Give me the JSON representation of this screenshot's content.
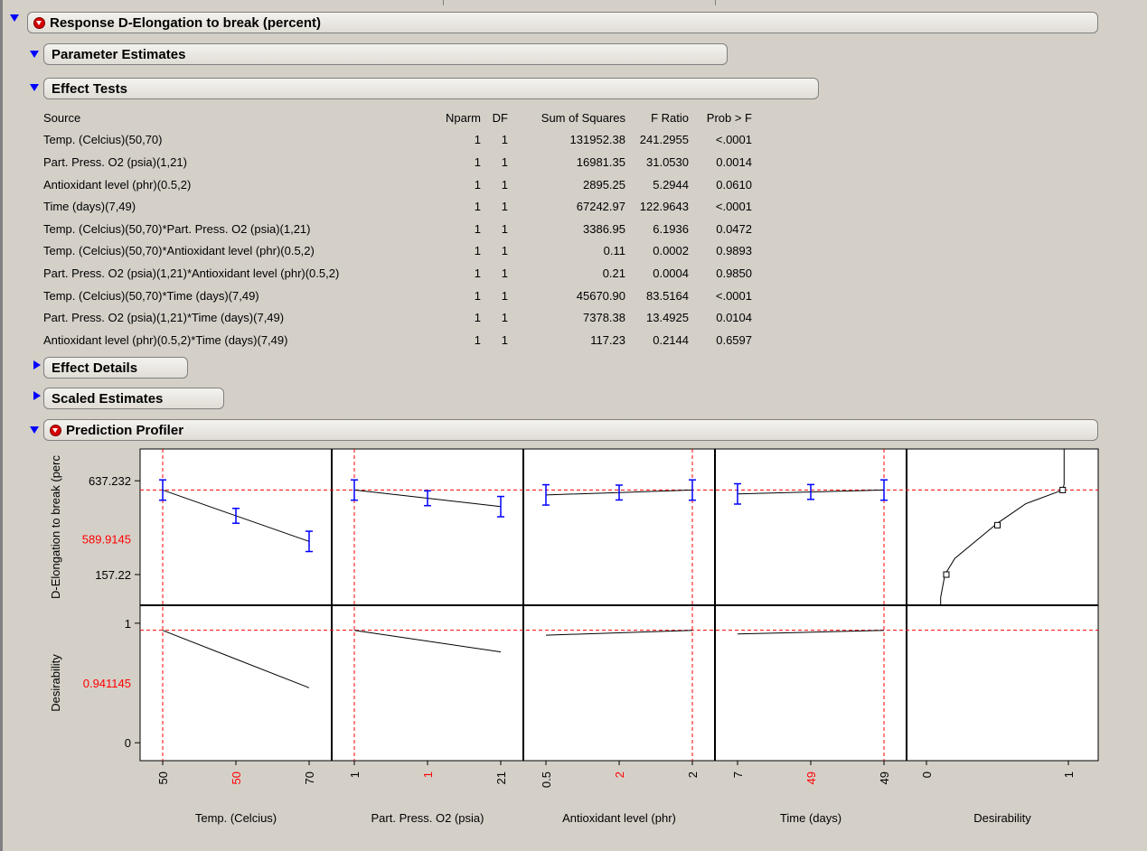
{
  "report": {
    "title": "Response D-Elongation to break (percent)",
    "sections": {
      "parameter_estimates": "Parameter Estimates",
      "effect_tests": "Effect Tests",
      "effect_details": "Effect Details",
      "scaled_estimates": "Scaled Estimates",
      "prediction_profiler": "Prediction Profiler"
    }
  },
  "effect_tests": {
    "columns": [
      "Source",
      "Nparm",
      "DF",
      "Sum of Squares",
      "F Ratio",
      "Prob > F"
    ],
    "rows": [
      [
        "Temp. (Celcius)(50,70)",
        "1",
        "1",
        "131952.38",
        "241.2955",
        "<.0001"
      ],
      [
        "Part. Press. O2 (psia)(1,21)",
        "1",
        "1",
        "16981.35",
        "31.0530",
        "0.0014"
      ],
      [
        "Antioxidant level (phr)(0.5,2)",
        "1",
        "1",
        "2895.25",
        "5.2944",
        "0.0610"
      ],
      [
        "Time (days)(7,49)",
        "1",
        "1",
        "67242.97",
        "122.9643",
        "<.0001"
      ],
      [
        "Temp. (Celcius)(50,70)*Part. Press. O2 (psia)(1,21)",
        "1",
        "1",
        "3386.95",
        "6.1936",
        "0.0472"
      ],
      [
        "Temp. (Celcius)(50,70)*Antioxidant level (phr)(0.5,2)",
        "1",
        "1",
        "0.11",
        "0.0002",
        "0.9893"
      ],
      [
        "Part. Press. O2 (psia)(1,21)*Antioxidant level (phr)(0.5,2)",
        "1",
        "1",
        "0.21",
        "0.0004",
        "0.9850"
      ],
      [
        "Temp. (Celcius)(50,70)*Time (days)(7,49)",
        "1",
        "1",
        "45670.90",
        "83.5164",
        "<.0001"
      ],
      [
        "Part. Press. O2 (psia)(1,21)*Time (days)(7,49)",
        "1",
        "1",
        "7378.38",
        "13.4925",
        "0.0104"
      ],
      [
        "Antioxidant level (phr)(0.5,2)*Time (days)(7,49)",
        "1",
        "1",
        "117.23",
        "0.2144",
        "0.6597"
      ]
    ]
  },
  "icons": {
    "expanded": "disclosure-down-icon",
    "collapsed": "disclosure-right-icon",
    "menu": "red-menu-icon"
  },
  "colors": {
    "disclosure": "#0000ff",
    "menu": "#d40000",
    "current_value": "#ff0000",
    "error_bar": "#0000ff"
  },
  "chart_data": {
    "type": "line",
    "title": "Prediction Profiler",
    "rows": [
      {
        "ylabel": "D-Elongation to break (perc",
        "ylim": [
          0,
          800
        ],
        "ticks": [
          "637.232",
          "157.22"
        ],
        "current_label": "589.9145",
        "current": 589.9145
      },
      {
        "ylabel": "Desirability",
        "ylim": [
          -0.15,
          1.15
        ],
        "ticks": [
          "1",
          "0"
        ],
        "current_label": "0.941145",
        "current": 0.941145
      }
    ],
    "factors": [
      {
        "name": "Temp. (Celcius)",
        "min": 50,
        "max": 70,
        "current": 50,
        "tick_labels": [
          "50",
          "50",
          "70"
        ],
        "response": {
          "x": [
            50,
            60,
            70
          ],
          "y": [
            589.9,
            458,
            327
          ],
          "ci": [
            52,
            38,
            52
          ]
        },
        "desirability": {
          "x": [
            50,
            70
          ],
          "y": [
            0.94,
            0.46
          ]
        }
      },
      {
        "name": "Part. Press. O2 (psia)",
        "min": 1,
        "max": 21,
        "current": 1,
        "tick_labels": [
          "1",
          "1",
          "21"
        ],
        "response": {
          "x": [
            1,
            11,
            21
          ],
          "y": [
            589.9,
            548,
            505
          ],
          "ci": [
            52,
            38,
            52
          ]
        },
        "desirability": {
          "x": [
            1,
            21
          ],
          "y": [
            0.94,
            0.76
          ]
        }
      },
      {
        "name": "Antioxidant level (phr)",
        "min": 0.5,
        "max": 2,
        "current": 2,
        "tick_labels": [
          "0.5",
          "2",
          "2"
        ],
        "response": {
          "x": [
            0.5,
            1.25,
            2
          ],
          "y": [
            565,
            577,
            589.9
          ],
          "ci": [
            52,
            38,
            52
          ]
        },
        "desirability": {
          "x": [
            0.5,
            2
          ],
          "y": [
            0.9,
            0.94
          ]
        }
      },
      {
        "name": "Time (days)",
        "min": 7,
        "max": 49,
        "current": 49,
        "tick_labels": [
          "7",
          "49",
          "49"
        ],
        "response": {
          "x": [
            7,
            28,
            49
          ],
          "y": [
            570,
            580,
            589.9
          ],
          "ci": [
            52,
            38,
            52
          ]
        },
        "desirability": {
          "x": [
            7,
            49
          ],
          "y": [
            0.91,
            0.94
          ]
        }
      }
    ],
    "desirability_panel": {
      "name": "Desirability",
      "tick_labels": [
        "0",
        "1"
      ],
      "xlim": [
        0,
        1
      ],
      "curve": [
        [
          0.1,
          0
        ],
        [
          0.1,
          40
        ],
        [
          0.13,
          157
        ],
        [
          0.2,
          240
        ],
        [
          0.5,
          420
        ],
        [
          0.7,
          520
        ],
        [
          0.96,
          589.9
        ],
        [
          0.97,
          620
        ],
        [
          0.97,
          800
        ]
      ],
      "markers": [
        [
          0.14,
          157.22
        ],
        [
          0.5,
          410
        ],
        [
          0.96,
          589.9
        ]
      ]
    }
  }
}
